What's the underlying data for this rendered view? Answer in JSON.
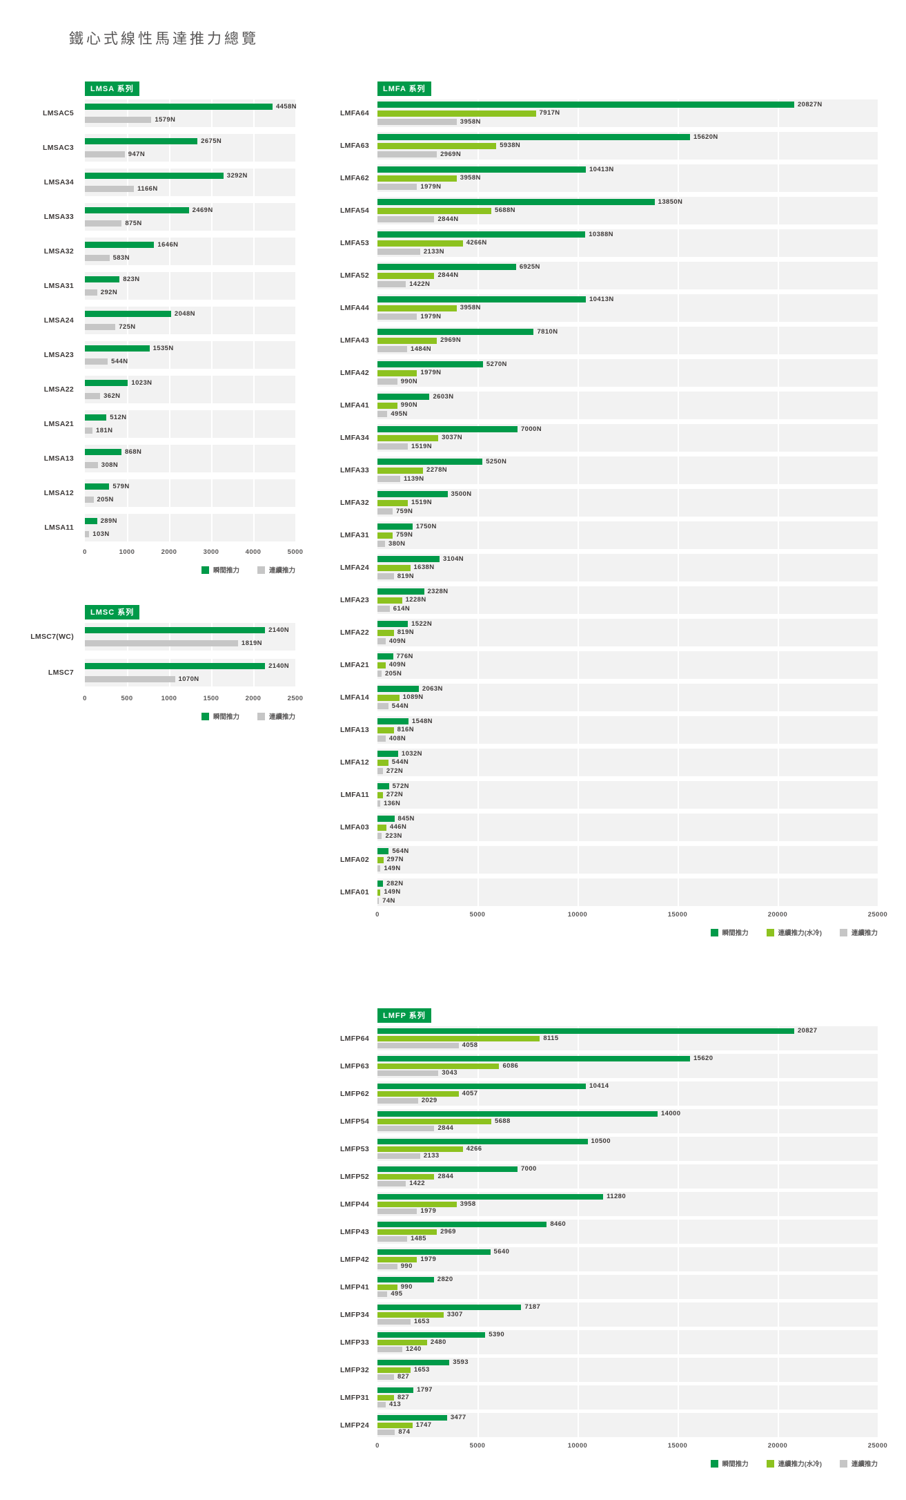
{
  "page": {
    "title": "鐵心式線性馬達推力總覽"
  },
  "colors": {
    "instant": "#009a49",
    "continuous_water": "#8dc21f",
    "continuous": "#c6c6c6",
    "band_background": "#f2f2f2",
    "badge_background": "#009a49",
    "text": "#3e3a39",
    "axis_text": "#595757"
  },
  "chart_data": [
    {
      "type": "bar",
      "orientation": "horizontal",
      "title": "LMSA 系列",
      "categories": [
        "LMSAC5",
        "LMSAC3",
        "LMSA34",
        "LMSA33",
        "LMSA32",
        "LMSA31",
        "LMSA24",
        "LMSA23",
        "LMSA22",
        "LMSA21",
        "LMSA13",
        "LMSA12",
        "LMSA11"
      ],
      "series": [
        {
          "name": "瞬間推力",
          "key": "instant",
          "color": "#009a49",
          "values": [
            4458,
            2675,
            3292,
            2469,
            1646,
            823,
            2048,
            1535,
            1023,
            512,
            868,
            579,
            289
          ]
        },
        {
          "name": "連續推力",
          "key": "continuous",
          "color": "#c6c6c6",
          "values": [
            1579,
            947,
            1166,
            875,
            583,
            292,
            725,
            544,
            362,
            181,
            308,
            205,
            103
          ]
        }
      ],
      "xlim": [
        0,
        5000
      ],
      "ticks": [
        0,
        1000,
        2000,
        3000,
        4000,
        5000
      ],
      "value_suffix": "N",
      "xlabel": "",
      "ylabel": "",
      "grid": true,
      "legend_position": "bottom-right"
    },
    {
      "type": "bar",
      "orientation": "horizontal",
      "title": "LMFA 系列",
      "categories": [
        "LMFA64",
        "LMFA63",
        "LMFA62",
        "LMFA54",
        "LMFA53",
        "LMFA52",
        "LMFA44",
        "LMFA43",
        "LMFA42",
        "LMFA41",
        "LMFA34",
        "LMFA33",
        "LMFA32",
        "LMFA31",
        "LMFA24",
        "LMFA23",
        "LMFA22",
        "LMFA21",
        "LMFA14",
        "LMFA13",
        "LMFA12",
        "LMFA11",
        "LMFA03",
        "LMFA02",
        "LMFA01"
      ],
      "series": [
        {
          "name": "瞬間推力",
          "key": "instant",
          "color": "#009a49",
          "values": [
            20827,
            15620,
            10413,
            13850,
            10388,
            6925,
            10413,
            7810,
            5270,
            2603,
            7000,
            5250,
            3500,
            1750,
            3104,
            2328,
            1522,
            776,
            2063,
            1548,
            1032,
            572,
            845,
            564,
            282
          ]
        },
        {
          "name": "連續推力(水冷)",
          "key": "continuous_water",
          "color": "#8dc21f",
          "values": [
            7917,
            5938,
            3958,
            5688,
            4266,
            2844,
            3958,
            2969,
            1979,
            990,
            3037,
            2278,
            1519,
            759,
            1638,
            1228,
            819,
            409,
            1089,
            816,
            544,
            272,
            446,
            297,
            149
          ]
        },
        {
          "name": "連續推力",
          "key": "continuous",
          "color": "#c6c6c6",
          "values": [
            3958,
            2969,
            1979,
            2844,
            2133,
            1422,
            1979,
            1484,
            990,
            495,
            1519,
            1139,
            759,
            380,
            819,
            614,
            409,
            205,
            544,
            408,
            272,
            136,
            223,
            149,
            74
          ]
        }
      ],
      "xlim": [
        0,
        25000
      ],
      "ticks": [
        0,
        5000,
        10000,
        15000,
        20000,
        25000
      ],
      "value_suffix": "N",
      "xlabel": "",
      "ylabel": "",
      "grid": true,
      "legend_position": "bottom-right"
    },
    {
      "type": "bar",
      "orientation": "horizontal",
      "title": "LMSC 系列",
      "categories": [
        "LMSC7(WC)",
        "LMSC7"
      ],
      "series": [
        {
          "name": "瞬間推力",
          "key": "instant",
          "color": "#009a49",
          "values": [
            2140,
            2140
          ]
        },
        {
          "name": "連續推力",
          "key": "continuous",
          "color": "#c6c6c6",
          "values": [
            1819,
            1070
          ]
        }
      ],
      "xlim": [
        0,
        2500
      ],
      "ticks": [
        0,
        500,
        1000,
        1500,
        2000,
        2500
      ],
      "value_suffix": "N",
      "xlabel": "",
      "ylabel": "",
      "grid": true,
      "legend_position": "bottom-right"
    },
    {
      "type": "bar",
      "orientation": "horizontal",
      "title": "LMFP 系列",
      "categories": [
        "LMFP64",
        "LMFP63",
        "LMFP62",
        "LMFP54",
        "LMFP53",
        "LMFP52",
        "LMFP44",
        "LMFP43",
        "LMFP42",
        "LMFP41",
        "LMFP34",
        "LMFP33",
        "LMFP32",
        "LMFP31",
        "LMFP24"
      ],
      "series": [
        {
          "name": "瞬間推力",
          "key": "instant",
          "color": "#009a49",
          "values": [
            20827,
            15620,
            10414,
            14000,
            10500,
            7000,
            11280,
            8460,
            5640,
            2820,
            7187,
            5390,
            3593,
            1797,
            3477
          ]
        },
        {
          "name": "連續推力(水冷)",
          "key": "continuous_water",
          "color": "#8dc21f",
          "values": [
            8115,
            6086,
            4057,
            5688,
            4266,
            2844,
            3958,
            2969,
            1979,
            990,
            3307,
            2480,
            1653,
            827,
            1747
          ]
        },
        {
          "name": "連續推力",
          "key": "continuous",
          "color": "#c6c6c6",
          "values": [
            4058,
            3043,
            2029,
            2844,
            2133,
            1422,
            1979,
            1485,
            990,
            495,
            1653,
            1240,
            827,
            413,
            874
          ]
        }
      ],
      "xlim": [
        0,
        25000
      ],
      "ticks": [
        0,
        5000,
        10000,
        15000,
        20000,
        25000
      ],
      "value_suffix": "",
      "xlabel": "",
      "ylabel": "",
      "grid": true,
      "legend_position": "bottom-right"
    }
  ]
}
